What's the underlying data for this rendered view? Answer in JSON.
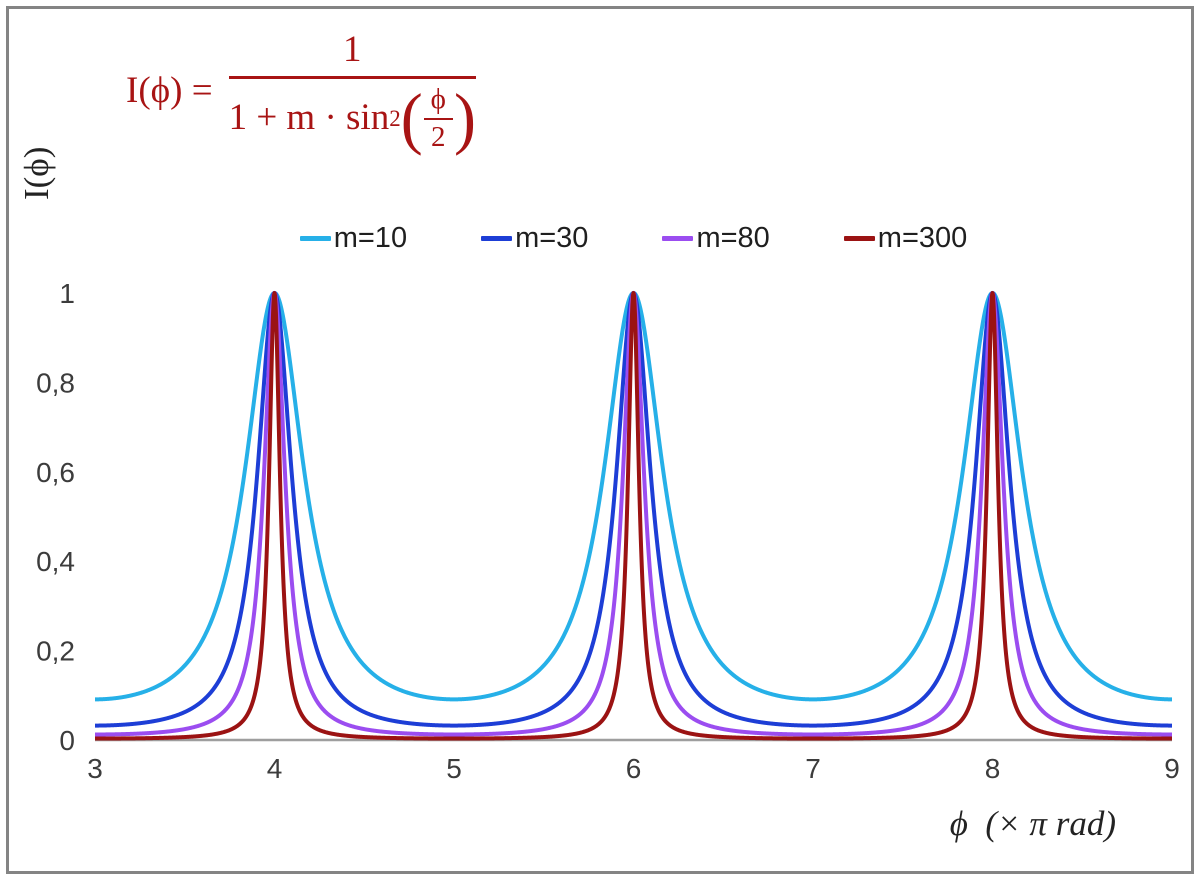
{
  "chart_data": {
    "type": "line",
    "title": "",
    "function": "I(x) = 1 / (1 + m * sin^2(x*pi/2)), x expressed in units of pi rad",
    "xlabel": "ϕ  (× π rad)",
    "ylabel": "I(ϕ)",
    "xlim": [
      3,
      9
    ],
    "ylim": [
      0,
      1
    ],
    "x_ticks": [
      3,
      4,
      5,
      6,
      7,
      8,
      9
    ],
    "x_tick_labels": [
      "3",
      "4",
      "5",
      "6",
      "7",
      "8",
      "9"
    ],
    "y_ticks": [
      0,
      0.2,
      0.4,
      0.6,
      0.8,
      1
    ],
    "y_tick_labels": [
      "0",
      "0,2",
      "0,4",
      "0,6",
      "0,8",
      "1"
    ],
    "peaks_at_x": [
      4,
      6,
      8
    ],
    "grid": false,
    "legend_position": "top-center",
    "axis_color": "#9e9e9e",
    "tick_color": "#3c3c3c",
    "series": [
      {
        "name": "m=10",
        "m": 10,
        "color": "#26b0e8",
        "stroke_width": 4
      },
      {
        "name": "m=30",
        "m": 30,
        "color": "#1d3ed6",
        "stroke_width": 4
      },
      {
        "name": "m=80",
        "m": 80,
        "color": "#9b4df0",
        "stroke_width": 4
      },
      {
        "name": "m=300",
        "m": 300,
        "color": "#9b1313",
        "stroke_width": 4
      }
    ]
  },
  "formula": {
    "color": "#a81414",
    "lhs": "I(ϕ) =",
    "numerator": "1",
    "den_prefix": "1 + m · sin",
    "den_sup": "2",
    "paren_open": "(",
    "paren_close": ")",
    "inner_numerator": "ϕ",
    "inner_denominator": "2"
  }
}
